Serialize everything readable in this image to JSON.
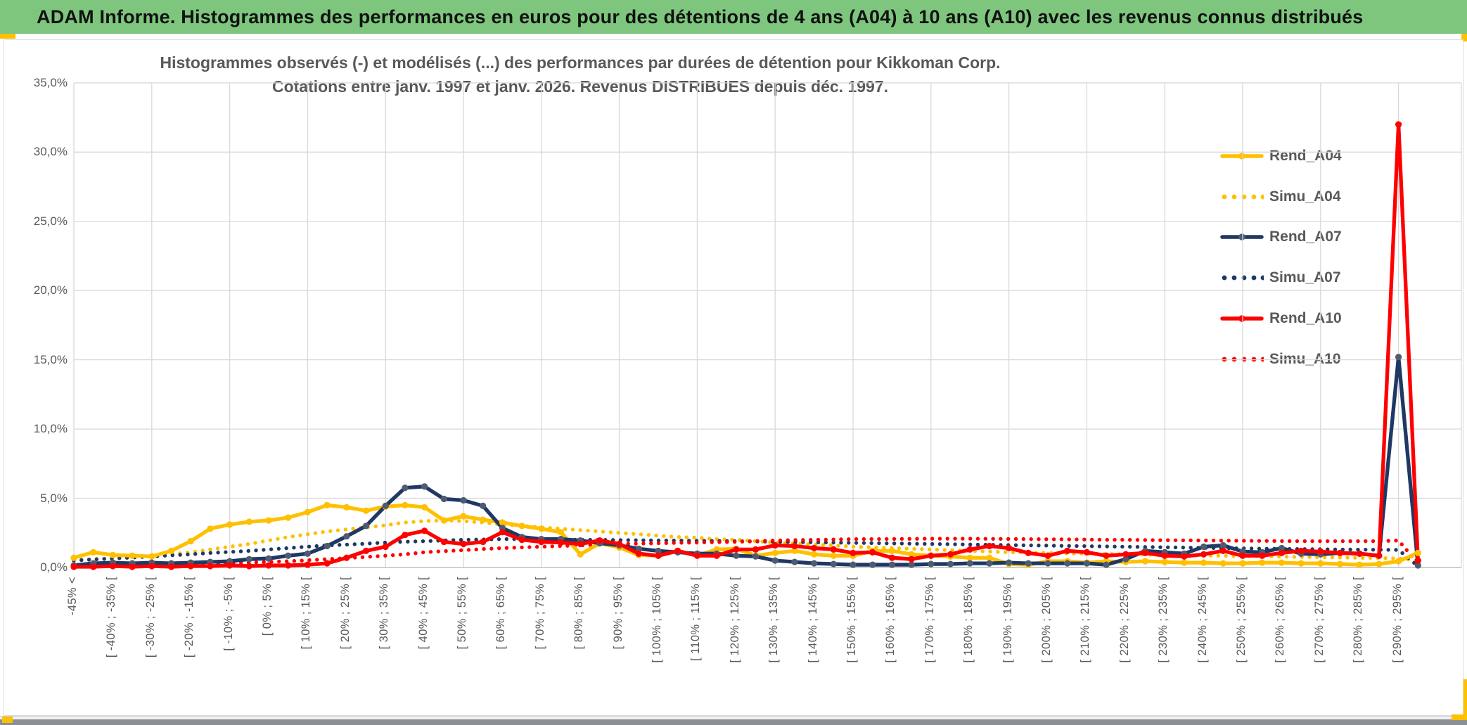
{
  "header": {
    "title": "ADAM Informe. Histogrammes des performances en euros pour des détentions de 4 ans (A04) à 10 ans (A10) avec les revenus connus distribués",
    "bg_color": "#7ec67e",
    "accent_color": "#ffc000"
  },
  "footer": {
    "bar_color": "#8a9094"
  },
  "chart_data": {
    "type": "line",
    "title": "Histogrammes observés (-) et modélisés (...) des performances par durées de détention pour Kikkoman Corp.",
    "subtitle": "Cotations entre janv. 1997 et janv. 2026. Revenus DISTRIBUES depuis déc. 1997.",
    "y_axis": {
      "tick_labels": [
        "0,0%",
        "5,0%",
        "10,0%",
        "15,0%",
        "20,0%",
        "25,0%",
        "30,0%",
        "35,0%"
      ],
      "min": 0,
      "max": 35,
      "step": 5,
      "unit": "%",
      "grid": true
    },
    "x_axis": {
      "labels": [
        "-45% <",
        "[ -40% ; -35% [",
        "[ -30% ; -25% [",
        "[ -20% ; -15% [",
        "[ -10% ; -5% [",
        "[ 0% ; 5% [",
        "[ 10% ; 15% [",
        "[ 20% ; 25% [",
        "[ 30% ; 35% [",
        "[ 40% ; 45% [",
        "[ 50% ; 55% [",
        "[ 60% ; 65% [",
        "[ 70% ; 75% [",
        "[ 80% ; 85% [",
        "[ 90% ; 95% [",
        "[ 100% ; 105% [",
        "[ 110% ; 115% [",
        "[ 120% ; 125% [",
        "[ 130% ; 135% [",
        "[ 140% ; 145% [",
        "[ 150% ; 155% [",
        "[ 160% ; 165% [",
        "[ 170% ; 175% [",
        "[ 180% ; 185% [",
        "[ 190% ; 195% [",
        "[ 200% ; 205% [",
        "[ 210% ; 215% [",
        "[ 220% ; 225% [",
        "[ 230% ; 235% [",
        "[ 240% ; 245% [",
        "[ 250% ; 255% [",
        "[ 260% ; 265% [",
        "[ 270% ; 275% [",
        "[ 280% ; 285% [",
        "[ 290% ; 295% ["
      ],
      "label_every_n_bins": 2,
      "gridline_every_n_bins": 4,
      "bins_count": 70
    },
    "legend": {
      "position": "right-top"
    },
    "series": [
      {
        "name": "Rend_A04",
        "style": "solid",
        "color": "#ffc000",
        "marker_color": "#ffc000",
        "values": [
          0.7,
          1.1,
          0.9,
          0.85,
          0.8,
          1.2,
          1.9,
          2.8,
          3.1,
          3.3,
          3.4,
          3.6,
          4.0,
          4.5,
          4.35,
          4.1,
          4.4,
          4.5,
          4.35,
          3.4,
          3.7,
          3.45,
          3.25,
          3.0,
          2.8,
          2.55,
          0.95,
          1.75,
          1.45,
          0.9,
          0.85,
          1.2,
          0.85,
          1.3,
          1.35,
          0.85,
          1.05,
          1.2,
          0.95,
          0.85,
          0.85,
          1.2,
          1.2,
          0.95,
          0.85,
          0.8,
          0.7,
          0.7,
          0.25,
          0.2,
          0.45,
          0.45,
          0.35,
          0.45,
          0.4,
          0.45,
          0.4,
          0.35,
          0.35,
          0.3,
          0.3,
          0.35,
          0.35,
          0.3,
          0.3,
          0.25,
          0.2,
          0.25,
          0.45,
          1.05
        ]
      },
      {
        "name": "Simu_A04",
        "style": "dotted",
        "color": "#ffc000",
        "values": [
          0.55,
          0.6,
          0.65,
          0.72,
          0.8,
          0.95,
          1.1,
          1.3,
          1.5,
          1.7,
          1.95,
          2.2,
          2.4,
          2.6,
          2.75,
          2.9,
          3.05,
          3.25,
          3.35,
          3.4,
          3.35,
          3.25,
          3.1,
          3.0,
          2.9,
          2.8,
          2.7,
          2.6,
          2.5,
          2.4,
          2.3,
          2.2,
          2.15,
          2.05,
          2.0,
          1.9,
          1.8,
          1.75,
          1.65,
          1.6,
          1.5,
          1.45,
          1.4,
          1.35,
          1.3,
          1.25,
          1.2,
          1.15,
          1.1,
          1.08,
          1.05,
          1.02,
          1.0,
          0.98,
          0.95,
          0.93,
          0.9,
          0.88,
          0.86,
          0.84,
          0.82,
          0.8,
          0.78,
          0.76,
          0.74,
          0.72,
          0.7,
          0.68,
          0.66,
          0.5
        ]
      },
      {
        "name": "Rend_A07",
        "style": "solid",
        "color": "#1f3864",
        "marker_color": "#4e5b70",
        "values": [
          0.15,
          0.3,
          0.35,
          0.3,
          0.35,
          0.3,
          0.35,
          0.4,
          0.45,
          0.6,
          0.65,
          0.85,
          1.0,
          1.55,
          2.25,
          3.0,
          4.45,
          5.75,
          5.85,
          4.95,
          4.85,
          4.45,
          2.85,
          2.2,
          2.05,
          2.05,
          1.95,
          1.75,
          1.6,
          1.35,
          1.2,
          1.1,
          1.0,
          1.0,
          0.85,
          0.8,
          0.5,
          0.4,
          0.3,
          0.25,
          0.2,
          0.2,
          0.2,
          0.2,
          0.25,
          0.25,
          0.3,
          0.3,
          0.35,
          0.3,
          0.3,
          0.3,
          0.3,
          0.2,
          0.6,
          1.2,
          1.1,
          1.0,
          1.5,
          1.6,
          1.15,
          1.1,
          1.4,
          1.0,
          0.95,
          1.05,
          1.0,
          0.85,
          15.2,
          0.15
        ]
      },
      {
        "name": "Simu_A07",
        "style": "dotted",
        "color": "#1f3864",
        "values": [
          0.5,
          0.58,
          0.65,
          0.72,
          0.8,
          0.88,
          0.95,
          1.05,
          1.12,
          1.2,
          1.3,
          1.4,
          1.5,
          1.6,
          1.65,
          1.72,
          1.8,
          1.86,
          1.9,
          1.95,
          2.0,
          2.02,
          2.05,
          2.05,
          2.05,
          2.03,
          2.0,
          2.0,
          1.98,
          1.97,
          1.95,
          1.95,
          1.93,
          1.92,
          1.9,
          1.88,
          1.86,
          1.84,
          1.82,
          1.8,
          1.78,
          1.76,
          1.74,
          1.72,
          1.7,
          1.68,
          1.66,
          1.64,
          1.62,
          1.6,
          1.58,
          1.56,
          1.54,
          1.52,
          1.5,
          1.48,
          1.46,
          1.44,
          1.42,
          1.4,
          1.38,
          1.36,
          1.35,
          1.33,
          1.32,
          1.3,
          1.29,
          1.28,
          1.27,
          0.1
        ]
      },
      {
        "name": "Rend_A10",
        "style": "solid",
        "color": "#ff0000",
        "marker_color": "#ff0000",
        "values": [
          0.05,
          0.05,
          0.1,
          0.05,
          0.1,
          0.05,
          0.1,
          0.1,
          0.15,
          0.1,
          0.15,
          0.15,
          0.2,
          0.3,
          0.7,
          1.2,
          1.5,
          2.35,
          2.65,
          1.85,
          1.7,
          1.85,
          2.55,
          2.0,
          1.85,
          1.8,
          1.7,
          1.95,
          1.7,
          1.0,
          0.85,
          1.2,
          0.85,
          0.85,
          1.3,
          1.3,
          1.6,
          1.55,
          1.4,
          1.3,
          1.05,
          1.1,
          0.7,
          0.6,
          0.85,
          0.95,
          1.3,
          1.55,
          1.4,
          1.05,
          0.85,
          1.2,
          1.1,
          0.85,
          0.95,
          1.05,
          0.85,
          0.8,
          0.95,
          1.2,
          0.85,
          0.85,
          1.05,
          1.2,
          1.15,
          1.05,
          1.0,
          0.85,
          32.0,
          0.5
        ]
      },
      {
        "name": "Simu_A10",
        "style": "dotted",
        "color": "#ff0000",
        "values": [
          0.05,
          0.07,
          0.1,
          0.12,
          0.15,
          0.18,
          0.22,
          0.26,
          0.3,
          0.35,
          0.4,
          0.45,
          0.52,
          0.6,
          0.68,
          0.76,
          0.85,
          0.95,
          1.1,
          1.18,
          1.25,
          1.33,
          1.4,
          1.45,
          1.5,
          1.55,
          1.6,
          1.65,
          1.7,
          1.72,
          1.75,
          1.78,
          1.8,
          1.83,
          1.85,
          1.9,
          1.95,
          1.98,
          2.0,
          2.02,
          2.05,
          2.05,
          2.06,
          2.07,
          2.08,
          2.08,
          2.08,
          2.07,
          2.06,
          2.05,
          2.04,
          2.03,
          2.02,
          2.0,
          2.0,
          1.98,
          1.97,
          1.96,
          1.95,
          1.94,
          1.93,
          1.92,
          1.91,
          1.9,
          1.9,
          1.9,
          1.9,
          1.9,
          1.95,
          0.3
        ]
      }
    ]
  }
}
